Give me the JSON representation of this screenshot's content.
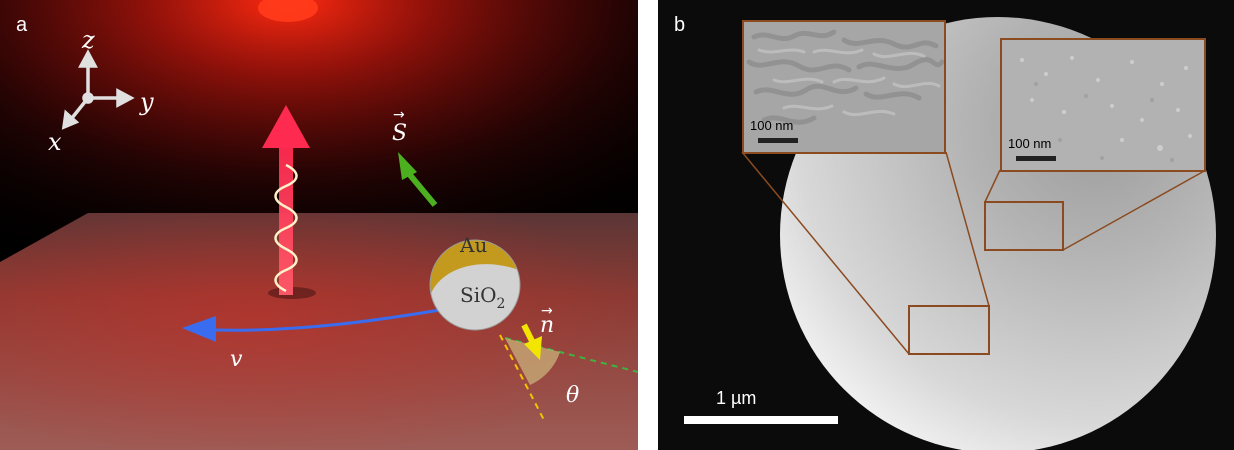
{
  "panel_a": {
    "letter": "a",
    "axes": {
      "z": "z",
      "y": "y",
      "x": "x"
    },
    "vectors": {
      "s": "S",
      "n": "n",
      "v": "v",
      "theta": "θ"
    },
    "particle": {
      "top_label": "Au",
      "bottom_label": "SiO",
      "bottom_subscript": "2"
    },
    "colors": {
      "beam": "#ff1a2a",
      "s_arrow": "#4caf1f",
      "n_arrow": "#f2e500",
      "v_arrow": "#3a6cf0",
      "gold_cap": "#c39a1e",
      "silica": "#d2d2d2"
    }
  },
  "panel_b": {
    "letter": "b",
    "inset_left": {
      "scale_label": "100 nm"
    },
    "inset_right": {
      "scale_label": "100 nm"
    },
    "main_scale_label": "1 µm",
    "colors": {
      "frame": "#8b4a1f"
    }
  }
}
